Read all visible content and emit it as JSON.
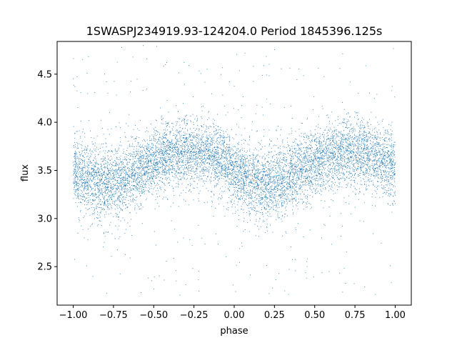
{
  "chart_data": {
    "type": "scatter",
    "title": "1SWASPJ234919.93-124204.0 Period 1845396.125s",
    "xlabel": "phase",
    "ylabel": "flux",
    "xlim": [
      -1.1,
      1.1
    ],
    "ylim": [
      2.1,
      4.84
    ],
    "x_ticks": [
      -1.0,
      -0.75,
      -0.5,
      -0.25,
      0.0,
      0.25,
      0.5,
      0.75,
      1.0
    ],
    "x_tick_labels": [
      "−1.00",
      "−0.75",
      "−0.50",
      "−0.25",
      "0.00",
      "0.25",
      "0.50",
      "0.75",
      "1.00"
    ],
    "y_ticks": [
      2.5,
      3.0,
      3.5,
      4.0,
      4.5
    ],
    "y_tick_labels": [
      "2.5",
      "3.0",
      "3.5",
      "4.0",
      "4.5"
    ],
    "grid": false,
    "marker_color": "#1f77b4",
    "series": [
      {
        "x": [
          -1.0,
          -0.9,
          -0.8,
          -0.7,
          -0.6,
          -0.5,
          -0.4,
          -0.3,
          -0.2,
          -0.1,
          0.0,
          0.1,
          0.2,
          0.3,
          0.4,
          0.5,
          0.6,
          0.7,
          0.8,
          0.9,
          1.0
        ],
        "y": [
          3.5,
          3.4,
          3.35,
          3.4,
          3.5,
          3.58,
          3.65,
          3.7,
          3.68,
          3.62,
          3.5,
          3.4,
          3.35,
          3.4,
          3.5,
          3.58,
          3.65,
          3.7,
          3.68,
          3.62,
          3.55
        ],
        "spread": [
          0.17,
          0.18,
          0.2,
          0.2,
          0.18,
          0.17,
          0.17,
          0.18,
          0.18,
          0.17,
          0.17,
          0.18,
          0.2,
          0.2,
          0.18,
          0.17,
          0.17,
          0.18,
          0.18,
          0.17,
          0.17
        ]
      }
    ]
  }
}
